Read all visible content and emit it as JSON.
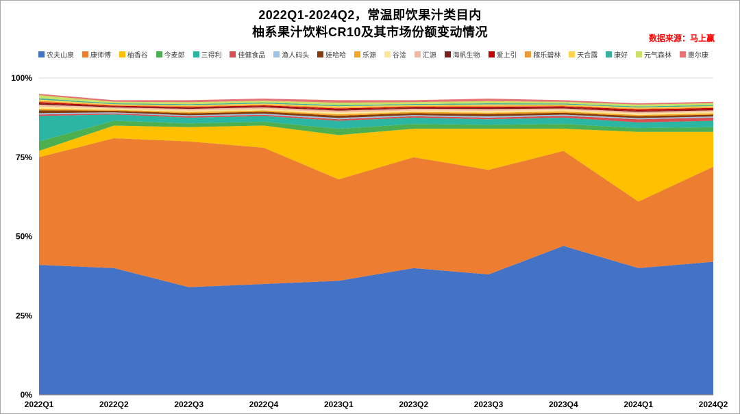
{
  "header": {
    "title_line1": "2022Q1-2024Q2，常温即饮果汁类目内",
    "title_line2": "柚系果汁饮料CR10及其市场份额变动情况",
    "source_note": "数据来源：马上赢"
  },
  "chart_data": {
    "type": "area",
    "stacked": true,
    "title": "2022Q1-2024Q2，常温即饮果汁类目内柚系果汁饮料CR10及其市场份额变动情况",
    "xlabel": "",
    "ylabel": "",
    "ylim": [
      0,
      100
    ],
    "grid": true,
    "legend_position": "top",
    "x_categories": [
      "2022Q1",
      "2022Q2",
      "2022Q3",
      "2022Q4",
      "2023Q1",
      "2023Q2",
      "2023Q3",
      "2023Q4",
      "2024Q1",
      "2024Q2"
    ],
    "y_tick_labels": [
      "0%",
      "25%",
      "50%",
      "75%",
      "100%"
    ],
    "unit": "percent_market_share",
    "series": [
      {
        "name": "农夫山泉",
        "color": "#4472C4",
        "values": [
          41,
          40,
          34,
          35,
          36,
          40,
          38,
          47,
          40,
          42
        ]
      },
      {
        "name": "康师傅",
        "color": "#ED7D31",
        "values": [
          34,
          41,
          46,
          43,
          32,
          35,
          33,
          30,
          21,
          30
        ]
      },
      {
        "name": "柚香谷",
        "color": "#FFC000",
        "values": [
          2,
          4,
          4.5,
          7,
          14,
          9,
          13,
          7,
          22,
          11
        ]
      },
      {
        "name": "今麦郎",
        "color": "#4CAF50",
        "values": [
          3,
          1.5,
          1.2,
          1.2,
          2,
          1.5,
          1.2,
          1.5,
          1.2,
          1.5
        ]
      },
      {
        "name": "三得利",
        "color": "#2BB5A3",
        "values": [
          8,
          2,
          1.8,
          1.8,
          2.5,
          2,
          1.8,
          2,
          1.8,
          2
        ]
      },
      {
        "name": "佳健食品",
        "color": "#D94F4F",
        "values": [
          0.5,
          0.35,
          0.4,
          0.4,
          0.5,
          0.45,
          0.5,
          0.6,
          1.0,
          1.0
        ]
      },
      {
        "name": "渔人码头",
        "color": "#9DC3E6",
        "values": [
          0.4,
          0.3,
          0.35,
          0.35,
          0.4,
          0.35,
          0.4,
          0.35,
          0.35,
          0.35
        ]
      },
      {
        "name": "娃哈哈",
        "color": "#843C0C",
        "values": [
          0.9,
          0.5,
          0.6,
          0.6,
          0.7,
          0.6,
          0.7,
          0.6,
          0.6,
          0.6
        ]
      },
      {
        "name": "乐源",
        "color": "#F5A623",
        "values": [
          0.5,
          0.3,
          0.4,
          0.4,
          0.45,
          0.4,
          0.45,
          0.4,
          0.4,
          0.4
        ]
      },
      {
        "name": "谷淦",
        "color": "#FFE699",
        "values": [
          0.7,
          0.4,
          0.5,
          0.5,
          0.6,
          0.5,
          0.6,
          0.5,
          0.5,
          0.5
        ]
      },
      {
        "name": "汇源",
        "color": "#F4B8A0",
        "values": [
          0.6,
          0.4,
          0.5,
          0.5,
          0.55,
          0.5,
          0.55,
          0.45,
          0.45,
          0.45
        ]
      },
      {
        "name": "海帆生物",
        "color": "#7B1F1F",
        "values": [
          0.4,
          0.25,
          0.3,
          0.3,
          0.35,
          0.3,
          0.35,
          0.3,
          0.3,
          0.3
        ]
      },
      {
        "name": "爱上引",
        "color": "#C00000",
        "values": [
          0.4,
          0.25,
          0.3,
          0.3,
          0.35,
          0.3,
          0.4,
          0.35,
          0.5,
          0.45
        ]
      },
      {
        "name": "稼乐碧林",
        "color": "#ED9A37",
        "values": [
          0.4,
          0.25,
          0.3,
          0.3,
          0.35,
          0.3,
          0.35,
          0.3,
          0.3,
          0.3
        ]
      },
      {
        "name": "天合露",
        "color": "#FFD34D",
        "values": [
          0.4,
          0.25,
          0.3,
          0.3,
          0.35,
          0.3,
          0.35,
          0.3,
          0.3,
          0.3
        ]
      },
      {
        "name": "康好",
        "color": "#3BAEA0",
        "values": [
          0.4,
          0.25,
          0.3,
          0.3,
          0.35,
          0.3,
          0.35,
          0.3,
          0.3,
          0.3
        ]
      },
      {
        "name": "元气森林",
        "color": "#C9E265",
        "values": [
          1.0,
          0.5,
          0.6,
          0.6,
          0.75,
          0.6,
          0.7,
          0.55,
          0.6,
          0.6
        ]
      },
      {
        "name": "惠尔康",
        "color": "#E57373",
        "values": [
          0.4,
          0.5,
          0.65,
          0.65,
          0.8,
          0.6,
          0.8,
          0.5,
          0.4,
          0.45
        ]
      }
    ]
  }
}
